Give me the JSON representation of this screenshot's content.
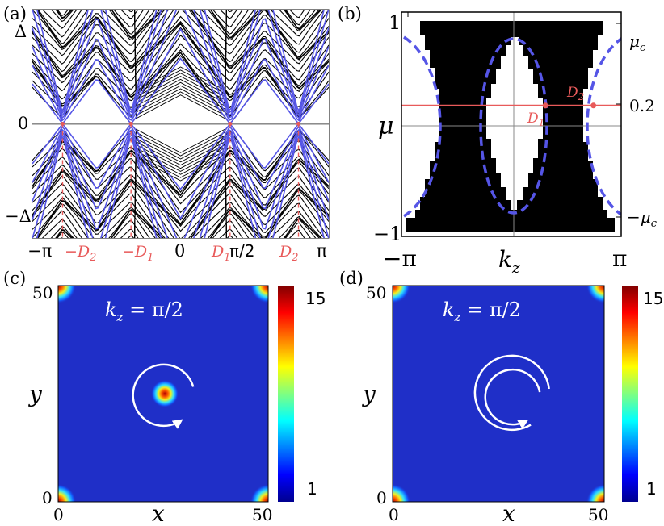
{
  "chart_data": [
    {
      "panel": "(a)",
      "type": "line",
      "description_source": "band spectrum",
      "xlim": [
        -3.14159,
        3.14159
      ],
      "ylim": [
        -1.1,
        1.1
      ],
      "x_tick_labels": [
        "−π",
        "−D2",
        "−D1",
        "0",
        "D1",
        "π/2",
        "D2",
        "π"
      ],
      "y_tick_labels": [
        "Δ",
        "0",
        "−Δ"
      ],
      "node_positions": [
        -2.5,
        -1.05,
        1.05,
        2.5
      ],
      "colors": {
        "bulk": "#000000",
        "surface": "#5555e6",
        "marker": "#e85a5a"
      }
    },
    {
      "panel": "(b)",
      "type": "heatmap",
      "xlabel": "k_z",
      "ylabel": "μ",
      "xlim": [
        -3.14159,
        3.14159
      ],
      "ylim": [
        -1,
        1
      ],
      "x_tick_labels": [
        "−π",
        "π"
      ],
      "y_tick_labels": [
        "1",
        "−1"
      ],
      "right_labels": [
        "μc",
        "0.2",
        "−μc"
      ],
      "mu_line": 0.2,
      "points": [
        {
          "name": "D1",
          "x": 1.05,
          "y": 0.2
        },
        {
          "name": "D2",
          "x": 2.5,
          "y": 0.2
        }
      ],
      "colors": {
        "gapped": "#000000",
        "gapless": "#ffffff",
        "contour": "#5555e6",
        "line": "#e85a5a"
      }
    },
    {
      "panel": "(c)",
      "type": "heatmap",
      "annotation": "k_z = π/2",
      "xlabel": "x",
      "ylabel": "y",
      "xlim": [
        0,
        50
      ],
      "ylim": [
        0,
        50
      ],
      "x_tick_labels": [
        "0",
        "50"
      ],
      "y_tick_labels": [
        "50",
        "0"
      ],
      "colorbar_ticks": [
        "15",
        "1"
      ],
      "hotspots": [
        {
          "x": 25,
          "y": 25,
          "value": 15
        },
        {
          "x": 0,
          "y": 0,
          "value": 15
        },
        {
          "x": 50,
          "y": 0,
          "value": 15
        },
        {
          "x": 0,
          "y": 50,
          "value": 15
        },
        {
          "x": 50,
          "y": 50,
          "value": 15
        }
      ],
      "winding_arrows": 1
    },
    {
      "panel": "(d)",
      "type": "heatmap",
      "annotation": "k_z = π/2",
      "xlabel": "x",
      "ylabel": "y",
      "xlim": [
        0,
        50
      ],
      "ylim": [
        0,
        50
      ],
      "x_tick_labels": [
        "0",
        "50"
      ],
      "y_tick_labels": [
        "50",
        "0"
      ],
      "colorbar_ticks": [
        "15",
        "1"
      ],
      "hotspots": [
        {
          "x": 0,
          "y": 0,
          "value": 15
        },
        {
          "x": 50,
          "y": 0,
          "value": 15
        },
        {
          "x": 0,
          "y": 50,
          "value": 15
        },
        {
          "x": 50,
          "y": 50,
          "value": 15
        }
      ],
      "winding_arrows": 2
    }
  ],
  "labels": {
    "a": "(a)",
    "b": "(b)",
    "c": "(c)",
    "d": "(d)",
    "a_Delta": "Δ",
    "a_zero": "0",
    "a_mDelta": "−Δ",
    "a_mpi": "−π",
    "a_mD2_pre": "−D",
    "a_mD2_sub": "2",
    "a_mD1_pre": "−D",
    "a_mD1_sub": "1",
    "a_x0": "0",
    "a_D1_pre": "D",
    "a_D1_sub": "1",
    "a_pi2": "π/2",
    "a_D2_pre": "D",
    "a_D2_sub": "2",
    "a_pi": "π",
    "b_one": "1",
    "b_mone": "−1",
    "b_mu": "μ",
    "b_muc": "μ",
    "b_muc_sub": "c",
    "b_mmuc": "−μ",
    "b_mmuc_sub": "c",
    "b_02": "0.2",
    "b_D1": "D",
    "b_D1_sub": "1",
    "b_D2": "D",
    "b_D2_sub": "2",
    "b_mpi": "−π",
    "b_pi": "π",
    "b_kz": "k",
    "b_kz_sub": "z",
    "c_kz": "k",
    "c_kz_sub": "z",
    "c_kz_eq": " = π/2",
    "c_y50": "50",
    "c_y0": "0",
    "c_x0": "0",
    "c_x50": "50",
    "c_xl": "x",
    "c_yl": "y",
    "c_cb15": "15",
    "c_cb1": "1",
    "d_kz": "k",
    "d_kz_sub": "z",
    "d_kz_eq": " = π/2",
    "d_y50": "50",
    "d_y0": "0",
    "d_x0": "0",
    "d_x50": "50",
    "d_xl": "x",
    "d_yl": "y",
    "d_cb15": "15",
    "d_cb1": "1"
  }
}
